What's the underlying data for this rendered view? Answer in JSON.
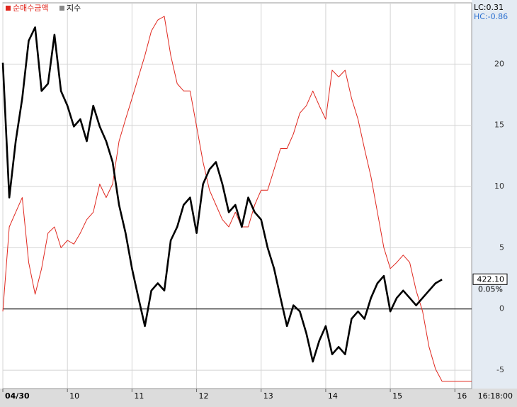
{
  "chart_data": {
    "type": "line",
    "legend": [
      "순매수금액",
      "지수"
    ],
    "lc_label": "LC:0.31",
    "hc_label": "HC:-0.86",
    "last_label": "422.10",
    "change_label": "0.05%",
    "time_label": "16:18:00",
    "x": [
      9.0,
      9.1,
      9.2,
      9.3,
      9.4,
      9.5,
      9.6,
      9.7,
      9.8,
      9.9,
      10.0,
      10.1,
      10.2,
      10.3,
      10.4,
      10.5,
      10.6,
      10.7,
      10.8,
      10.9,
      11.0,
      11.1,
      11.2,
      11.3,
      11.4,
      11.5,
      11.6,
      11.7,
      11.8,
      11.9,
      12.0,
      12.1,
      12.2,
      12.3,
      12.4,
      12.5,
      12.6,
      12.7,
      12.8,
      12.9,
      13.0,
      13.1,
      13.2,
      13.3,
      13.4,
      13.5,
      13.6,
      13.7,
      13.8,
      13.9,
      14.0,
      14.1,
      14.2,
      14.3,
      14.4,
      14.5,
      14.6,
      14.7,
      14.8,
      14.9,
      15.0,
      15.1,
      15.2,
      15.3,
      15.4,
      15.5,
      15.6,
      15.7,
      15.8,
      16.26
    ],
    "series": [
      {
        "name": "순매수금액",
        "color": "#e0281f",
        "values": [
          -0.2,
          6.7,
          7.9,
          9.1,
          3.8,
          1.2,
          3.3,
          6.2,
          6.7,
          5.0,
          5.6,
          5.3,
          6.2,
          7.3,
          7.9,
          10.2,
          9.1,
          10.2,
          13.7,
          15.5,
          17.2,
          18.95,
          20.7,
          22.7,
          23.6,
          23.9,
          20.7,
          18.4,
          17.8,
          17.8,
          14.9,
          12.0,
          9.7,
          8.5,
          7.3,
          6.7,
          7.9,
          6.7,
          6.7,
          8.5,
          9.7,
          9.7,
          11.4,
          13.1,
          13.1,
          14.3,
          16.0,
          16.6,
          17.8,
          16.6,
          15.5,
          19.5,
          18.95,
          19.5,
          17.2,
          15.5,
          13.1,
          10.8,
          7.9,
          5.0,
          3.3,
          3.8,
          4.4,
          3.8,
          1.5,
          -0.2,
          -3.1,
          -4.9,
          -5.9,
          -5.9
        ]
      },
      {
        "name": "지수",
        "color": "#000000",
        "values": [
          20.1,
          9.1,
          13.7,
          17.2,
          21.9,
          23.0,
          17.8,
          18.4,
          22.4,
          17.8,
          16.6,
          14.9,
          15.5,
          13.7,
          16.6,
          14.9,
          13.7,
          12.0,
          8.5,
          6.2,
          3.3,
          0.9,
          -1.4,
          1.5,
          2.1,
          1.5,
          5.6,
          6.7,
          8.5,
          9.1,
          6.2,
          10.2,
          11.4,
          12.0,
          10.2,
          7.9,
          8.5,
          6.7,
          9.1,
          7.9,
          7.3,
          5.0,
          3.3,
          0.9,
          -1.4,
          0.3,
          -0.2,
          -2.0,
          -4.3,
          -2.6,
          -1.4,
          -3.7,
          -3.1,
          -3.7,
          -0.8,
          -0.2,
          -0.8,
          0.9,
          2.1,
          2.7,
          -0.2,
          0.9,
          1.5,
          0.9,
          0.3,
          0.9,
          1.5,
          2.1,
          2.4,
          null
        ]
      }
    ],
    "xlim": [
      9,
      16.26
    ],
    "xticks": [
      {
        "value": 9,
        "label": "04/30"
      },
      10,
      11,
      12,
      13,
      14,
      15,
      16
    ],
    "ylim": [
      -6.5,
      25
    ],
    "yticks": [
      -5,
      0,
      5,
      10,
      15,
      20
    ],
    "reference_line": 0,
    "grid": true
  }
}
